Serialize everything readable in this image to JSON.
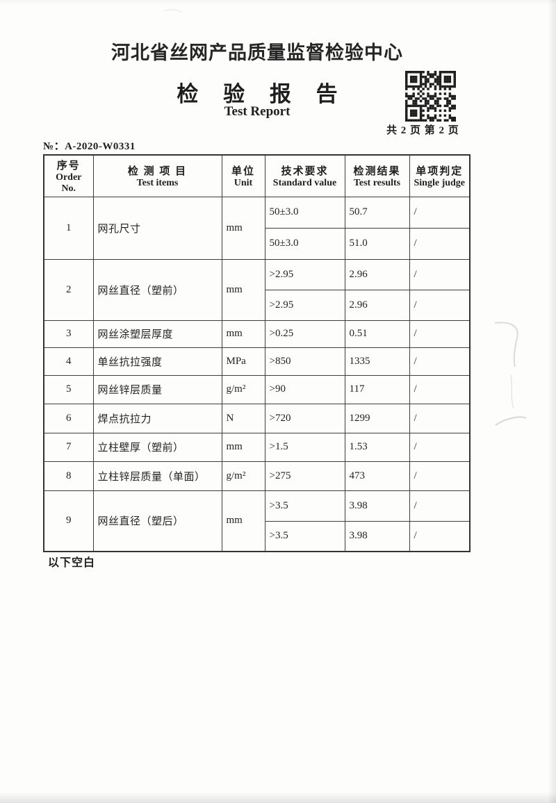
{
  "header": {
    "org": "河北省丝网产品质量监督检验中心",
    "title_cn": "检 验 报 告",
    "title_en": "Test Report",
    "page_info": "共 2 页 第 2 页",
    "report_no": "№：A-2020-W0331"
  },
  "table": {
    "headers": [
      {
        "cn": "序号",
        "en": "Order No."
      },
      {
        "cn": "检 测 项 目",
        "en": "Test items"
      },
      {
        "cn": "单位",
        "en": "Unit"
      },
      {
        "cn": "技术要求",
        "en": "Standard value"
      },
      {
        "cn": "检测结果",
        "en": "Test results"
      },
      {
        "cn": "单项判定",
        "en": "Single judge"
      }
    ],
    "rows": [
      {
        "no": "1",
        "item": "网孔尺寸",
        "unit": "mm",
        "subs": [
          {
            "req": "50±3.0",
            "res": "50.7",
            "judge": "/"
          },
          {
            "req": "50±3.0",
            "res": "51.0",
            "judge": "/"
          }
        ]
      },
      {
        "no": "2",
        "item": "网丝直径（塑前）",
        "unit": "mm",
        "subs": [
          {
            "req": ">2.95",
            "res": "2.96",
            "judge": "/"
          },
          {
            "req": ">2.95",
            "res": "2.96",
            "judge": "/"
          }
        ]
      },
      {
        "no": "3",
        "item": "网丝涂塑层厚度",
        "unit": "mm",
        "subs": [
          {
            "req": ">0.25",
            "res": "0.51",
            "judge": "/"
          }
        ]
      },
      {
        "no": "4",
        "item": "单丝抗拉强度",
        "unit": "MPa",
        "subs": [
          {
            "req": ">850",
            "res": "1335",
            "judge": "/"
          }
        ]
      },
      {
        "no": "5",
        "item": "网丝锌层质量",
        "unit": "g/m²",
        "subs": [
          {
            "req": ">90",
            "res": "117",
            "judge": "/"
          }
        ]
      },
      {
        "no": "6",
        "item": "焊点抗拉力",
        "unit": "N",
        "subs": [
          {
            "req": ">720",
            "res": "1299",
            "judge": "/"
          }
        ]
      },
      {
        "no": "7",
        "item": "立柱壁厚（塑前）",
        "unit": "mm",
        "subs": [
          {
            "req": ">1.5",
            "res": "1.53",
            "judge": "/"
          }
        ]
      },
      {
        "no": "8",
        "item": "立柱锌层质量（单面）",
        "unit": "g/m²",
        "subs": [
          {
            "req": ">275",
            "res": "473",
            "judge": "/"
          }
        ]
      },
      {
        "no": "9",
        "item": "网丝直径（塑后）",
        "unit": "mm",
        "subs": [
          {
            "req": ">3.5",
            "res": "3.98",
            "judge": "/"
          },
          {
            "req": ">3.5",
            "res": "3.98",
            "judge": "/"
          }
        ]
      }
    ]
  },
  "footer": {
    "note": "以下空白"
  }
}
